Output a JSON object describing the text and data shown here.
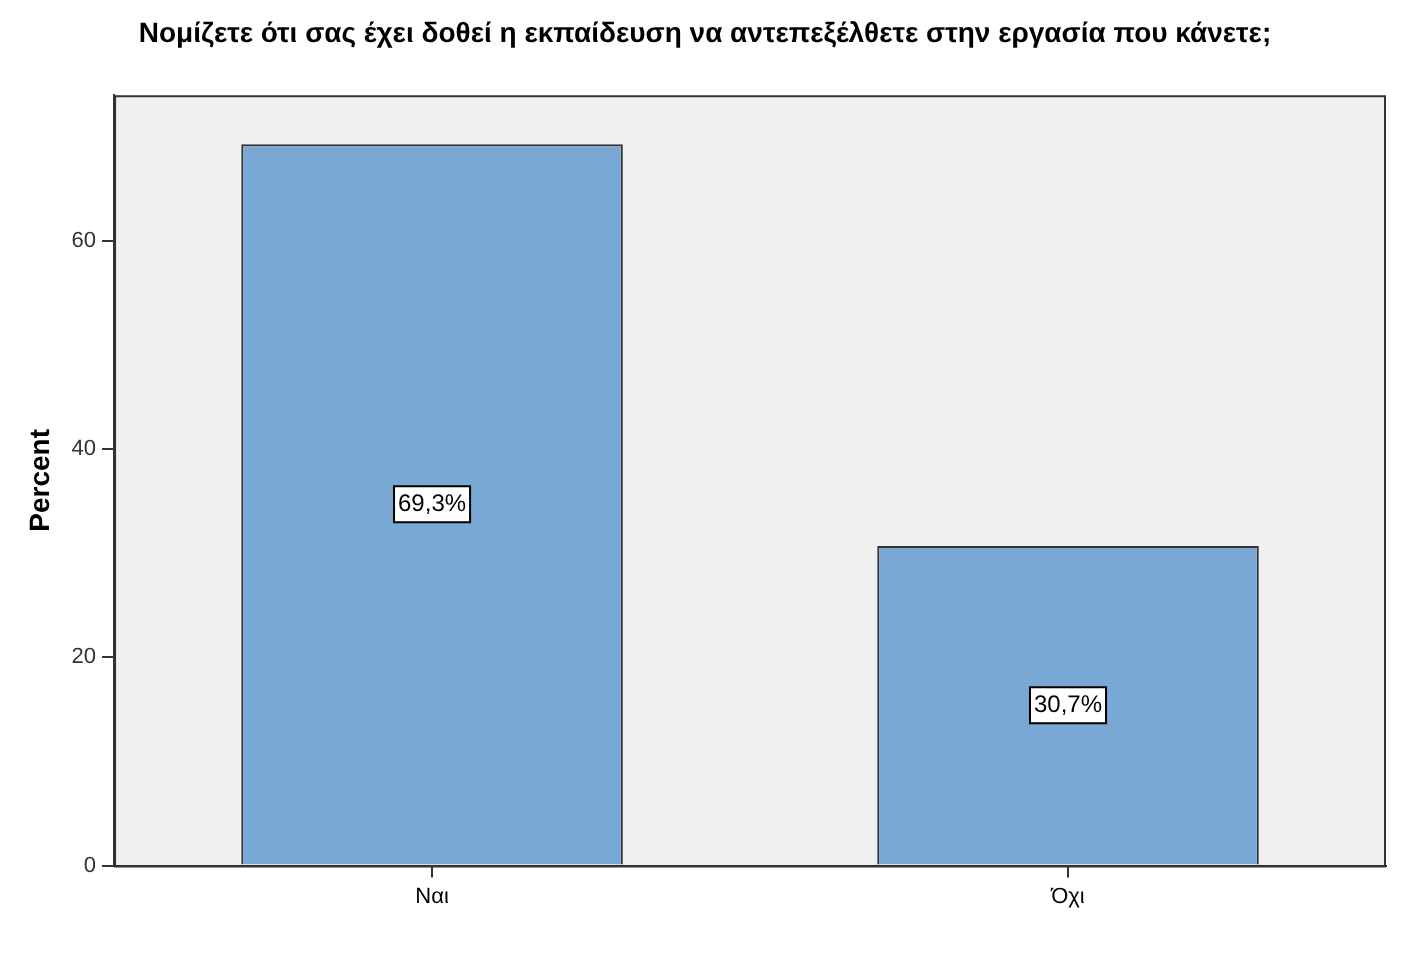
{
  "chart_data": {
    "type": "bar",
    "title": "Νομίζετε ότι σας έχει δοθεί η εκπαίδευση να αντεπεξέλθετε στην εργασία που κάνετε;",
    "ylabel": "Percent",
    "categories": [
      "Ναι",
      "Όχι"
    ],
    "values": [
      69.3,
      30.7
    ],
    "value_labels": [
      "69,3%",
      "30,7%"
    ],
    "color": "#7aa8d4",
    "ylim": [
      0,
      74
    ],
    "yticks": [
      0,
      20,
      40,
      60
    ],
    "grid": false,
    "legend": false
  }
}
